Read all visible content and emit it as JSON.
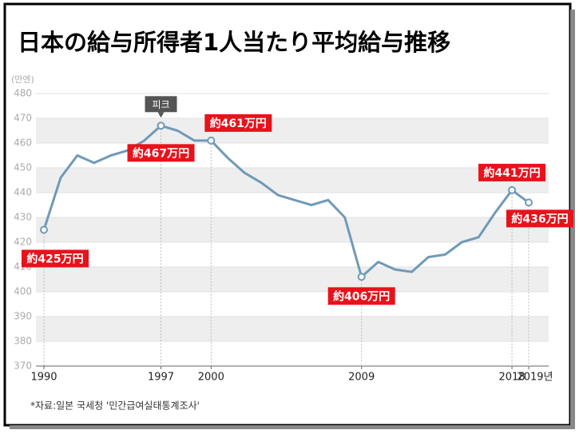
{
  "chart_data": {
    "type": "line",
    "title": "日本の給与所得者1人当たり平均給与推移",
    "ylabel": "(만엔)",
    "source": "*자료:일본 국세청 '민간급여실태통계조사'",
    "annotation": "피크",
    "x": [
      1990,
      1991,
      1992,
      1993,
      1994,
      1995,
      1996,
      1997,
      1998,
      1999,
      2000,
      2001,
      2002,
      2003,
      2004,
      2005,
      2006,
      2007,
      2008,
      2009,
      2010,
      2011,
      2012,
      2013,
      2014,
      2015,
      2016,
      2017,
      2018,
      2019
    ],
    "series": [
      {
        "name": "平均給与",
        "color": "#6f9ab8",
        "values": [
          425,
          446,
          455,
          452,
          455,
          457,
          461,
          467,
          465,
          461,
          461,
          454,
          448,
          444,
          439,
          437,
          435,
          437,
          430,
          406,
          412,
          409,
          408,
          414,
          415,
          420,
          422,
          432,
          441,
          436
        ],
        "value_labels": [
          "約425万円",
          null,
          null,
          null,
          null,
          null,
          null,
          "約467万円",
          null,
          null,
          "約461万円",
          null,
          null,
          null,
          null,
          null,
          null,
          null,
          null,
          "約406万円",
          null,
          null,
          null,
          null,
          null,
          null,
          null,
          null,
          "約441万円",
          "約436万円"
        ]
      }
    ],
    "xlim": [
      1990,
      2019
    ],
    "xticks": [
      1990,
      1997,
      2000,
      2009,
      2018,
      {
        "value": 2019,
        "label": "2019년"
      }
    ],
    "ylim": [
      370,
      480
    ],
    "yticks": [
      370,
      380,
      390,
      400,
      410,
      420,
      430,
      440,
      450,
      460,
      470,
      480
    ],
    "grid": true
  }
}
